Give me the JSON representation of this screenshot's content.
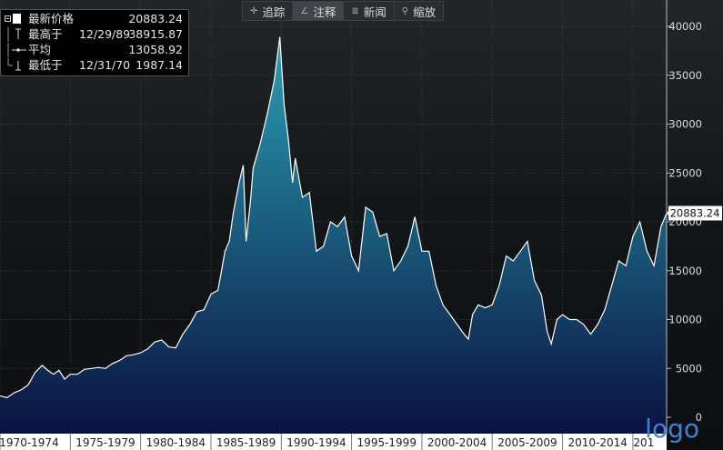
{
  "toolbar": {
    "items": [
      {
        "label": "追踪",
        "icon": "crosshair-icon"
      },
      {
        "label": "注释",
        "icon": "pencil-icon"
      },
      {
        "label": "新闻",
        "icon": "news-icon"
      },
      {
        "label": "缩放",
        "icon": "zoom-icon"
      }
    ],
    "active_index": 1
  },
  "legend": {
    "rows": [
      {
        "label": "最新价格",
        "date": "",
        "value": "20883.24"
      },
      {
        "label": "最高于",
        "date": "12/29/89",
        "value": "38915.87"
      },
      {
        "label": "平均",
        "date": "",
        "value": "13058.92"
      },
      {
        "label": "最低于",
        "date": "12/31/70",
        "value": "1987.14"
      }
    ]
  },
  "last_value_label": "20883.24",
  "logo": "logo",
  "colors": {
    "line": "#ffffff",
    "area_top": "#2aa0b5",
    "area_bottom": "#0a1240",
    "last_value_line": "#e59a1a",
    "axis_bar": "#ffffff"
  },
  "chart_data": {
    "type": "area",
    "title": "",
    "xlabel": "",
    "ylabel": "",
    "ylim": [
      0,
      42000
    ],
    "xlim": [
      1970,
      2017.4
    ],
    "yticks": [
      0,
      5000,
      10000,
      15000,
      20000,
      25000,
      30000,
      35000,
      40000
    ],
    "ytick_labels": [
      "0",
      "5000",
      "10000",
      "15000",
      "20000",
      "25000",
      "30000",
      "35000",
      "40000"
    ],
    "x_period_labels": [
      "1970-1974",
      "1975-1979",
      "1980-1984",
      "1985-1989",
      "1990-1994",
      "1995-1999",
      "2000-2004",
      "2005-2009",
      "2010-2014",
      "201"
    ],
    "x_period_starts": [
      1970,
      1975,
      1980,
      1985,
      1990,
      1995,
      2000,
      2005,
      2010,
      2015
    ],
    "grid": true,
    "legend_position": "top-left",
    "series": [
      {
        "x": [
          1970.0,
          1970.5,
          1971.0,
          1971.5,
          1972.0,
          1972.5,
          1973.0,
          1973.4,
          1973.8,
          1974.2,
          1974.6,
          1975.0,
          1975.5,
          1976.0,
          1976.5,
          1977.0,
          1977.5,
          1978.0,
          1978.5,
          1979.0,
          1979.5,
          1980.0,
          1980.5,
          1981.0,
          1981.5,
          1982.0,
          1982.5,
          1983.0,
          1983.5,
          1984.0,
          1984.5,
          1985.0,
          1985.5,
          1986.0,
          1986.3,
          1986.6,
          1987.0,
          1987.3,
          1987.5,
          1987.8,
          1988.0,
          1988.5,
          1989.0,
          1989.5,
          1989.9,
          1990.2,
          1990.5,
          1990.8,
          1991.0,
          1991.5,
          1992.0,
          1992.5,
          1993.0,
          1993.5,
          1994.0,
          1994.5,
          1995.0,
          1995.5,
          1996.0,
          1996.5,
          1997.0,
          1997.5,
          1998.0,
          1998.5,
          1999.0,
          1999.5,
          2000.0,
          2000.5,
          2001.0,
          2001.5,
          2002.0,
          2002.5,
          2003.0,
          2003.3,
          2003.6,
          2004.0,
          2004.5,
          2005.0,
          2005.5,
          2006.0,
          2006.5,
          2007.0,
          2007.5,
          2008.0,
          2008.5,
          2008.9,
          2009.2,
          2009.6,
          2010.0,
          2010.5,
          2011.0,
          2011.5,
          2012.0,
          2012.5,
          2013.0,
          2013.5,
          2014.0,
          2014.5,
          2015.0,
          2015.5,
          2016.0,
          2016.5,
          2017.0,
          2017.4
        ],
        "y": [
          2200,
          2000,
          2500,
          2800,
          3300,
          4600,
          5300,
          4800,
          4400,
          4800,
          3900,
          4400,
          4400,
          4900,
          5000,
          5100,
          5000,
          5500,
          5800,
          6300,
          6400,
          6600,
          7000,
          7700,
          7900,
          7200,
          7100,
          8500,
          9500,
          10800,
          11000,
          12600,
          13000,
          17000,
          18000,
          21000,
          24000,
          25800,
          18000,
          22000,
          25500,
          28000,
          31000,
          34500,
          38915,
          32000,
          28500,
          24000,
          26500,
          22500,
          23000,
          17000,
          17500,
          20000,
          19500,
          20500,
          16500,
          15000,
          21500,
          21000,
          18500,
          18800,
          15000,
          16000,
          17500,
          20500,
          17000,
          17000,
          13500,
          11500,
          10500,
          9500,
          8500,
          8000,
          10500,
          11500,
          11200,
          11500,
          13500,
          16500,
          16000,
          17000,
          18000,
          14000,
          12500,
          8800,
          7500,
          10000,
          10500,
          10000,
          10000,
          9500,
          8500,
          9500,
          11000,
          13500,
          16000,
          15500,
          18500,
          20000,
          17000,
          15500,
          19500,
          20883.24
        ]
      }
    ]
  }
}
